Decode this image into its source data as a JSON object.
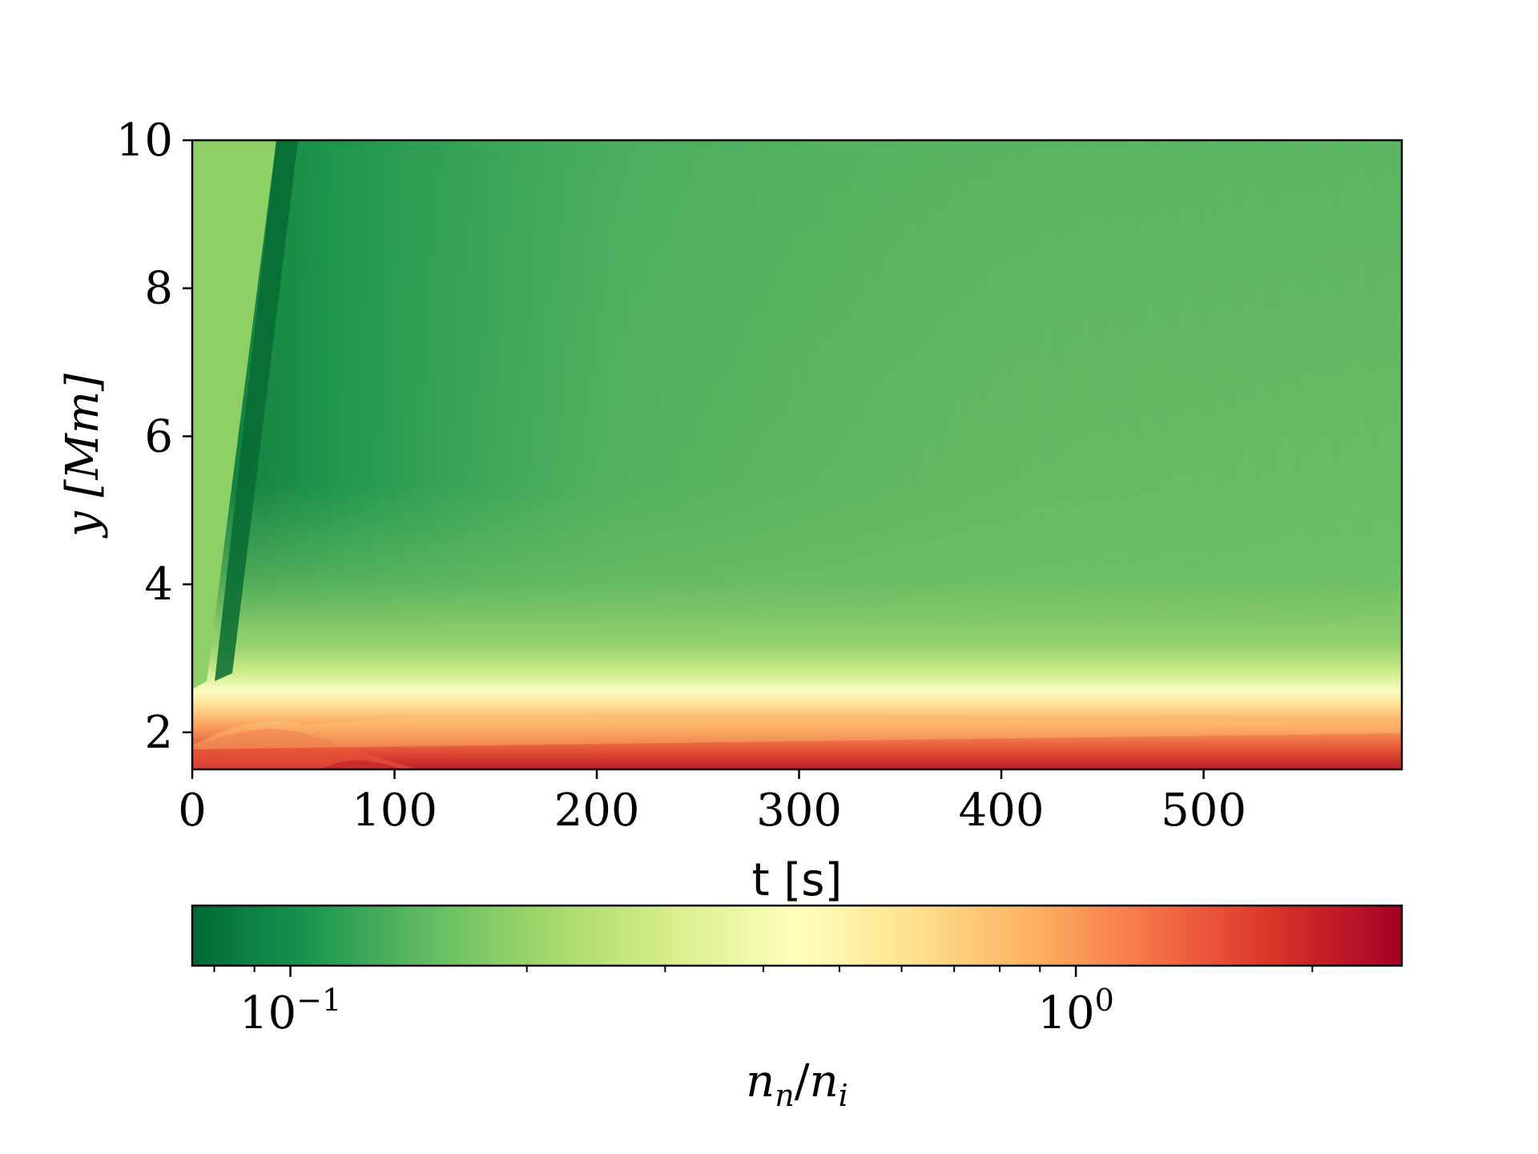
{
  "chart_data": {
    "type": "heatmap",
    "xlabel": "t [s]",
    "ylabel": "y [Mm]",
    "xlim": [
      0,
      598
    ],
    "ylim": [
      1.5,
      10
    ],
    "xticks": [
      0,
      100,
      200,
      300,
      400,
      500
    ],
    "xtick_labels": [
      "0",
      "100",
      "200",
      "300",
      "400",
      "500"
    ],
    "yticks": [
      2,
      4,
      6,
      8,
      10
    ],
    "ytick_labels": [
      "2",
      "4",
      "6",
      "8",
      "10"
    ],
    "colormap": "RdYlGn_r",
    "colorbar": {
      "label": "n_n/n_i",
      "label_main": "n",
      "label_sub_1": "n",
      "label_slash": "/",
      "label_main_2": "n",
      "label_sub_2": "i",
      "scale": "log",
      "range": [
        0.075,
        2.6
      ],
      "major_ticks": [
        0.1,
        1
      ],
      "tick_base": "10",
      "tick_exponents": [
        "−1",
        "0"
      ],
      "minor_ticks": [
        0.08,
        0.09,
        0.2,
        0.3,
        0.4,
        0.5,
        0.6,
        0.7,
        0.8,
        0.9,
        2
      ],
      "orientation": "horizontal",
      "placement": "below"
    },
    "description_values": {
      "band_y_Mm": 2.15,
      "low_layer_value_range": [
        1.0,
        2.6
      ],
      "upper_value_range": [
        0.08,
        0.2
      ]
    },
    "colors": {
      "dark_green": "#0b7438",
      "green": "#4bb05c",
      "light_green": "#a6d96a",
      "pale": "#ffffbf",
      "orange": "#fdae61",
      "red": "#d73027",
      "dark_red": "#a50026"
    }
  }
}
